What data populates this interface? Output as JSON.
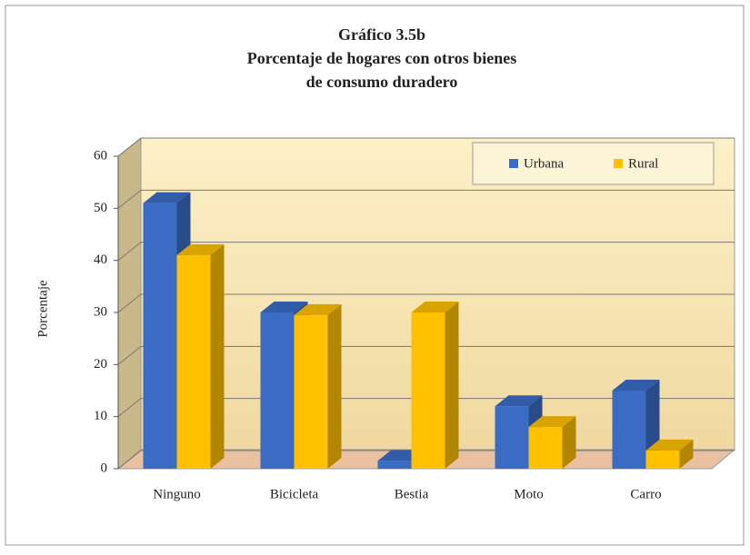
{
  "chart_data": {
    "type": "bar3d",
    "title": [
      "Gráfico 3.5b",
      "Porcentaje de hogares con otros bienes",
      "de consumo duradero"
    ],
    "y_axis_label": "Porcentaje",
    "categories": [
      "Ninguno",
      "Bicicleta",
      "Bestia",
      "Moto",
      "Carro"
    ],
    "series": [
      {
        "name": "Urbana",
        "color": "#3b6cc4",
        "values": [
          51,
          30,
          1.5,
          12,
          15
        ]
      },
      {
        "name": "Rural",
        "color": "#ffc000",
        "values": [
          41,
          29.5,
          30,
          8,
          3.5
        ]
      }
    ],
    "ylim": [
      0,
      60
    ],
    "yticks": [
      0,
      10,
      20,
      30,
      40,
      50,
      60
    ],
    "grid": true,
    "legend": "top-right"
  }
}
